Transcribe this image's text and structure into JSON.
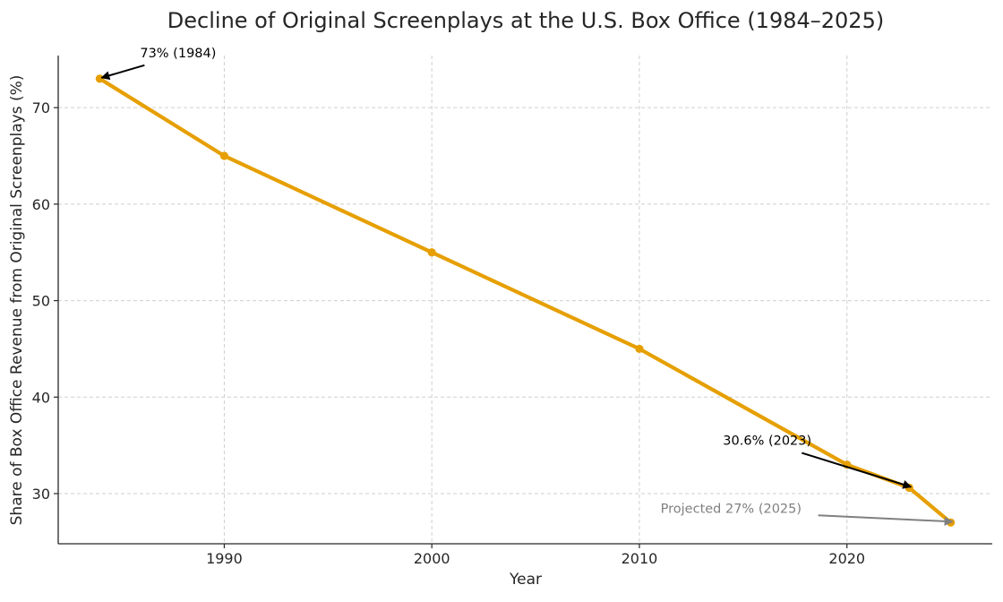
{
  "chart_data": {
    "type": "line",
    "title": "Decline of Original Screenplays at the U.S. Box Office (1984–2025)",
    "xlabel": "Year",
    "ylabel": "Share of Box Office Revenue from Original Screenplays (%)",
    "xlim": [
      1982,
      2027
    ],
    "ylim": [
      24.8,
      75.4
    ],
    "xticks": [
      1990,
      2000,
      2010,
      2020
    ],
    "yticks": [
      30,
      40,
      50,
      60,
      70
    ],
    "grid": true,
    "series": [
      {
        "color": "#e69f00",
        "x": [
          1984,
          1990,
          2000,
          2010,
          2020,
          2023,
          2025
        ],
        "y": [
          73,
          65,
          55,
          45,
          33,
          30.6,
          27
        ]
      }
    ],
    "annotations": [
      {
        "text": "73% (1984)",
        "x": 1984,
        "y": 73,
        "color": "#000000"
      },
      {
        "text": "30.6% (2023)",
        "x": 2023,
        "y": 30.6,
        "color": "#000000"
      },
      {
        "text": "Projected 27% (2025)",
        "x": 2025,
        "y": 27,
        "color": "#808080"
      }
    ]
  }
}
